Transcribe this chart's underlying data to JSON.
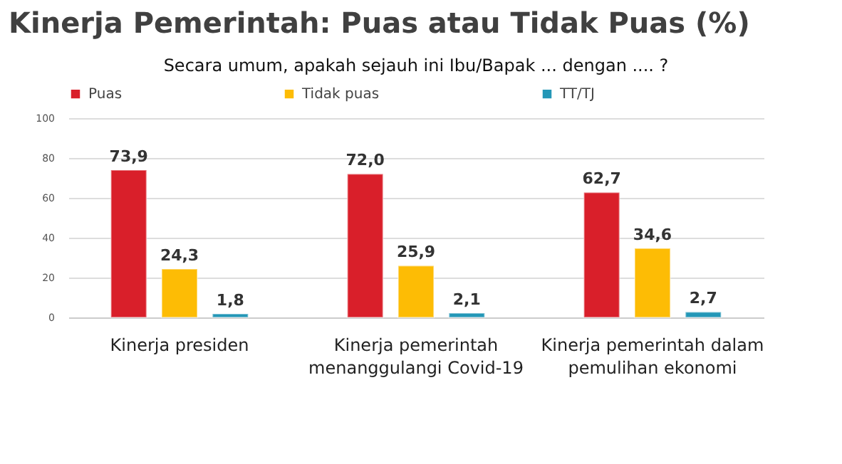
{
  "chart_data": {
    "type": "bar",
    "title": "Kinerja Pemerintah: Puas atau Tidak Puas (%)",
    "subtitle": "Secara umum, apakah sejauh ini Ibu/Bapak ... dengan .... ?",
    "categories": [
      "Kinerja presiden",
      "Kinerja pemerintah\nmenanggulangi Covid-19",
      "Kinerja pemerintah dalam\npemulihan ekonomi"
    ],
    "series": [
      {
        "name": "Puas",
        "color": "#d91f2a",
        "values": [
          73.9,
          72.0,
          62.7
        ],
        "value_labels": [
          "73,9",
          "72,0",
          "62,7"
        ]
      },
      {
        "name": "Tidak puas",
        "color": "#fdbc05",
        "values": [
          24.3,
          25.9,
          34.6
        ],
        "value_labels": [
          "24,3",
          "25,9",
          "34,6"
        ]
      },
      {
        "name": "TT/TJ",
        "color": "#2497b7",
        "values": [
          1.8,
          2.1,
          2.7
        ],
        "value_labels": [
          "1,8",
          "2,1",
          "2,7"
        ]
      }
    ],
    "ylim": [
      0,
      100
    ],
    "yticks": [
      0,
      20,
      40,
      60,
      80,
      100
    ],
    "grid": "y",
    "legend": "top"
  }
}
